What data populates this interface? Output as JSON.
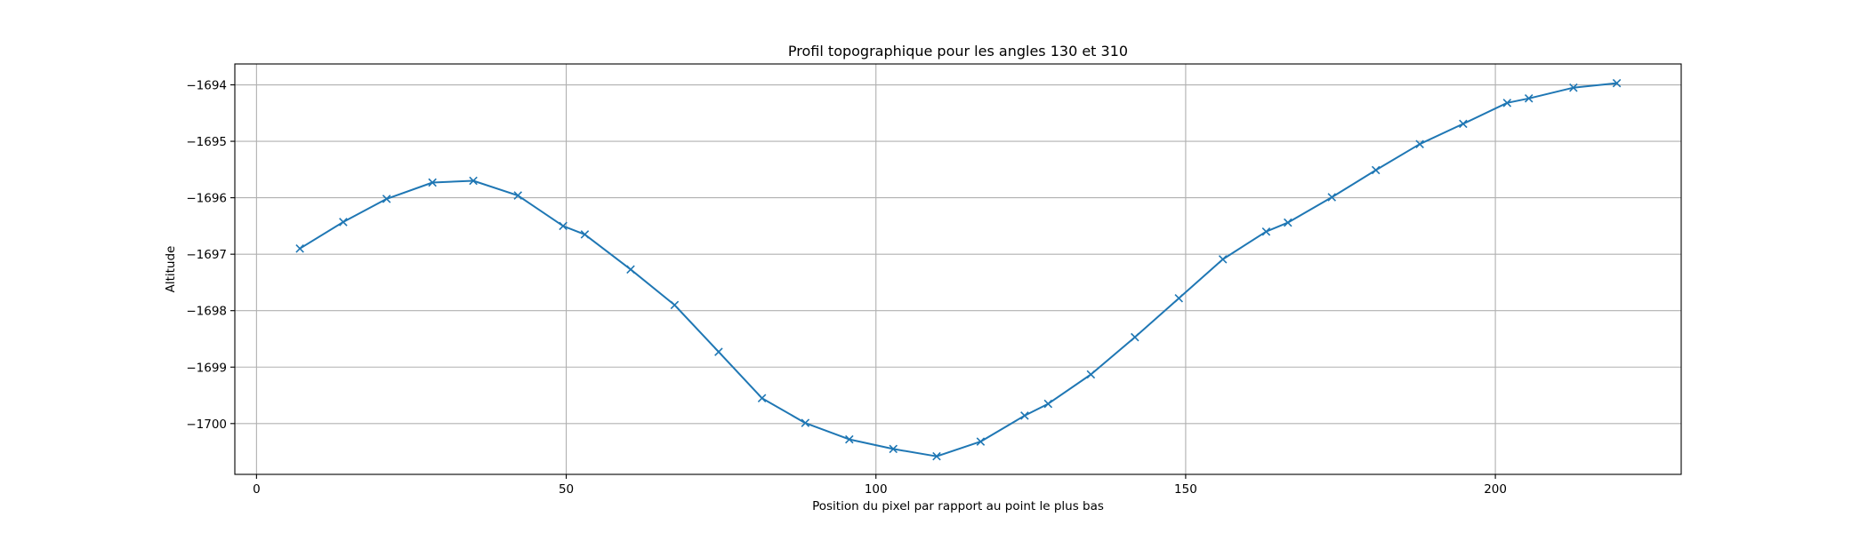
{
  "chart_data": {
    "type": "line",
    "title": "Profil topographique pour les angles 130 et 310",
    "xlabel": "Position du pixel par rapport au point le plus bas",
    "ylabel": "Altitude",
    "xlim": [
      -3.5,
      230.0
    ],
    "ylim": [
      -1700.9,
      -1693.63
    ],
    "xticks": [
      0,
      50,
      100,
      150,
      200
    ],
    "xtick_labels": [
      "0",
      "50",
      "100",
      "150",
      "200"
    ],
    "yticks": [
      -1694,
      -1695,
      -1696,
      -1697,
      -1698,
      -1699,
      -1700
    ],
    "ytick_labels": [
      "−1694",
      "−1695",
      "−1696",
      "−1697",
      "−1698",
      "−1699",
      "−1700"
    ],
    "grid": true,
    "color": "#1f77b4",
    "marker": "x",
    "series": [
      {
        "x": [
          7.0,
          14.0,
          21.0,
          28.4,
          35.0,
          42.2,
          49.5,
          53.0,
          60.4,
          67.5,
          74.6,
          81.6,
          88.6,
          95.7,
          102.8,
          109.8,
          116.9,
          124.0,
          127.8,
          134.7,
          141.8,
          148.9,
          156.0,
          163.0,
          166.5,
          173.6,
          180.7,
          187.8,
          194.8,
          201.9,
          205.4,
          212.6,
          219.6
        ],
        "y": [
          -1696.9,
          -1696.43,
          -1696.02,
          -1695.73,
          -1695.7,
          -1695.96,
          -1696.5,
          -1696.65,
          -1697.27,
          -1697.9,
          -1698.73,
          -1699.55,
          -1699.99,
          -1700.28,
          -1700.45,
          -1700.58,
          -1700.32,
          -1699.86,
          -1699.65,
          -1699.13,
          -1698.47,
          -1697.78,
          -1697.09,
          -1696.6,
          -1696.44,
          -1695.99,
          -1695.51,
          -1695.05,
          -1694.69,
          -1694.32,
          -1694.24,
          -1694.05,
          -1693.97
        ]
      }
    ]
  }
}
